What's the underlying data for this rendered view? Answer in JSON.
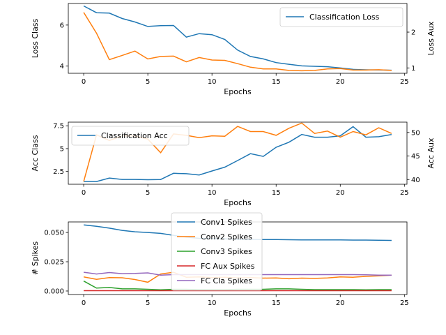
{
  "colors": {
    "blue": "#1f77b4",
    "orange": "#ff7f0e",
    "green": "#2ca02c",
    "red": "#d62728",
    "purple": "#9467bd",
    "axis": "#000000",
    "legend_border": "#cccccc"
  },
  "chart_data": [
    {
      "type": "line",
      "xlabel": "Epochs",
      "ylabel": "Loss Class",
      "ylabel_right": "Loss Aux",
      "xlim": [
        -1.2,
        25.2
      ],
      "xticks": [
        0,
        5,
        10,
        15,
        20,
        25
      ],
      "ylim": [
        3.65,
        7.05
      ],
      "yticks": [
        4,
        6
      ],
      "ylim_right": [
        0.85,
        2.8
      ],
      "yticks_right": [
        1,
        2
      ],
      "legend_position": "upper right",
      "x": [
        0,
        1,
        2,
        3,
        4,
        5,
        6,
        7,
        8,
        9,
        10,
        11,
        12,
        13,
        14,
        15,
        16,
        17,
        18,
        19,
        20,
        21,
        22,
        23,
        24
      ],
      "series": [
        {
          "name": "Classification Loss",
          "axis": "left",
          "color": "blue",
          "in_legend": true,
          "values": [
            6.93,
            6.6,
            6.58,
            6.32,
            6.15,
            5.93,
            5.97,
            5.98,
            5.41,
            5.58,
            5.53,
            5.3,
            4.78,
            4.47,
            4.35,
            4.17,
            4.09,
            4.01,
            3.99,
            3.97,
            3.91,
            3.84,
            3.82,
            3.81,
            3.8
          ]
        },
        {
          "axis": "right",
          "color": "orange",
          "in_legend": false,
          "values": [
            2.55,
            1.97,
            1.23,
            1.35,
            1.47,
            1.25,
            1.32,
            1.33,
            1.17,
            1.29,
            1.22,
            1.21,
            1.12,
            1.02,
            0.97,
            0.97,
            0.93,
            0.92,
            0.93,
            0.97,
            0.98,
            0.94,
            0.94,
            0.95,
            0.93
          ]
        }
      ]
    },
    {
      "type": "line",
      "xlabel": "Epochs",
      "ylabel": "Acc Class",
      "ylabel_right": "Acc Aux",
      "xlim": [
        -1.2,
        25.2
      ],
      "xticks": [
        0,
        5,
        10,
        15,
        20,
        25
      ],
      "ylim": [
        1.1,
        7.9
      ],
      "yticks": [
        2.5,
        5.0,
        7.5
      ],
      "ylim_right": [
        39.0,
        52.2
      ],
      "yticks_right": [
        40,
        45,
        50
      ],
      "legend_position": "upper left",
      "x": [
        0,
        1,
        2,
        3,
        4,
        5,
        6,
        7,
        8,
        9,
        10,
        11,
        12,
        13,
        14,
        15,
        16,
        17,
        18,
        19,
        20,
        21,
        22,
        23,
        24
      ],
      "series": [
        {
          "name": "Classification Acc",
          "axis": "left",
          "color": "blue",
          "in_legend": true,
          "values": [
            1.4,
            1.4,
            1.78,
            1.63,
            1.63,
            1.6,
            1.62,
            2.3,
            2.25,
            2.12,
            2.55,
            2.97,
            3.7,
            4.45,
            4.15,
            5.15,
            5.7,
            6.55,
            6.25,
            6.25,
            6.4,
            7.4,
            6.25,
            6.3,
            6.55
          ]
        },
        {
          "axis": "right",
          "color": "orange",
          "in_legend": false,
          "values": [
            39.6,
            49.5,
            48.3,
            49.3,
            49.3,
            48.6,
            45.7,
            49.7,
            49.4,
            48.9,
            49.3,
            49.2,
            51.3,
            50.2,
            50.2,
            49.4,
            50.9,
            52.0,
            49.8,
            50.3,
            49.0,
            50.2,
            49.5,
            51.0,
            49.8
          ]
        }
      ]
    },
    {
      "type": "line",
      "xlabel": "Epochs",
      "ylabel": "# Spikes",
      "xlim": [
        -1.2,
        25.2
      ],
      "xticks": [
        0,
        5,
        10,
        15,
        20,
        25
      ],
      "ylim": [
        -0.003,
        0.059
      ],
      "yticks": [
        0.0,
        0.025,
        0.05
      ],
      "ytick_labels": [
        "0.000",
        "0.025",
        "0.050"
      ],
      "legend_position": "upper center",
      "x": [
        0,
        1,
        2,
        3,
        4,
        5,
        6,
        7,
        8,
        9,
        10,
        11,
        12,
        13,
        14,
        15,
        16,
        17,
        18,
        19,
        20,
        21,
        22,
        23,
        24
      ],
      "series": [
        {
          "name": "Conv1 Spikes",
          "color": "blue",
          "values": [
            0.0565,
            0.0553,
            0.0537,
            0.0518,
            0.0506,
            0.05,
            0.0492,
            0.0475,
            0.046,
            0.045,
            0.0447,
            0.0445,
            0.0443,
            0.0441,
            0.044,
            0.0439,
            0.0438,
            0.0437,
            0.0436,
            0.0436,
            0.0436,
            0.0435,
            0.0435,
            0.0434,
            0.0432
          ]
        },
        {
          "name": "Conv2 Spikes",
          "color": "orange",
          "values": [
            0.012,
            0.01,
            0.0115,
            0.0113,
            0.0098,
            0.0075,
            0.0145,
            0.016,
            0.0118,
            0.012,
            0.0115,
            0.0118,
            0.0112,
            0.0115,
            0.011,
            0.0112,
            0.0105,
            0.011,
            0.0108,
            0.0112,
            0.012,
            0.0118,
            0.0125,
            0.013,
            0.0135
          ]
        },
        {
          "name": "Conv3 Spikes",
          "color": "green",
          "values": [
            0.0085,
            0.0025,
            0.003,
            0.0018,
            0.0018,
            0.0015,
            0.001,
            0.0015,
            0.0015,
            0.0012,
            0.0012,
            0.0012,
            0.0015,
            0.0015,
            0.0015,
            0.0018,
            0.0018,
            0.0015,
            0.0012,
            0.0012,
            0.0012,
            0.0012,
            0.001,
            0.0012,
            0.0012
          ]
        },
        {
          "name": "FC Aux Spikes",
          "color": "red",
          "values": [
            0.0003,
            0.0003,
            0.0003,
            0.0003,
            0.0003,
            0.0003,
            0.0003,
            0.0003,
            0.0003,
            0.0003,
            0.0003,
            0.0003,
            0.0003,
            0.0003,
            0.0003,
            0.0003,
            0.0003,
            0.0003,
            0.0003,
            0.0003,
            0.0003,
            0.0003,
            0.0003,
            0.0003,
            0.0003
          ]
        },
        {
          "name": "FC Cla Spikes",
          "color": "purple",
          "values": [
            0.016,
            0.0145,
            0.0158,
            0.0148,
            0.015,
            0.0155,
            0.0135,
            0.014,
            0.014,
            0.014,
            0.014,
            0.014,
            0.014,
            0.014,
            0.014,
            0.014,
            0.014,
            0.014,
            0.014,
            0.014,
            0.014,
            0.014,
            0.0138,
            0.0135,
            0.0135
          ]
        }
      ]
    }
  ]
}
